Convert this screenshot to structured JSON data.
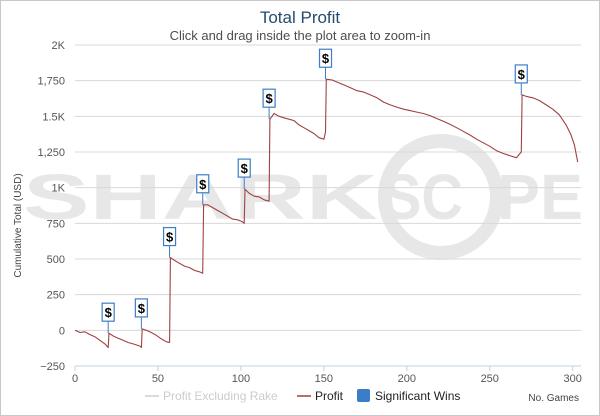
{
  "chart_data": {
    "type": "line",
    "title": "Total Profit",
    "subtitle": "Click and drag inside the plot area to zoom-in",
    "xlabel": "No. Games",
    "ylabel": "Cumulative Total (USD)",
    "xlim": [
      0,
      305
    ],
    "ylim": [
      -250,
      2000
    ],
    "x_ticks": [
      0,
      50,
      100,
      150,
      200,
      250,
      300
    ],
    "y_ticks": [
      -250,
      0,
      250,
      500,
      750,
      1000,
      1250,
      1500,
      1750,
      2000
    ],
    "y_tick_labels": [
      "−250",
      "0",
      "250",
      "500",
      "750",
      "1K",
      "1,250",
      "1.5K",
      "1,750",
      "2K"
    ],
    "grid": "horizontal",
    "legend_position": "bottom",
    "watermark": "SHARKSCOPE",
    "series": [
      {
        "name": "Profit Excluding Rake",
        "color": "#cccccc",
        "visible": false,
        "points": []
      },
      {
        "name": "Profit",
        "color": "#a04040",
        "points": [
          [
            0,
            0
          ],
          [
            3,
            -15
          ],
          [
            6,
            -10
          ],
          [
            9,
            -30
          ],
          [
            12,
            -45
          ],
          [
            15,
            -70
          ],
          [
            18,
            -95
          ],
          [
            20,
            -120
          ],
          [
            20.5,
            -20
          ],
          [
            23,
            -40
          ],
          [
            26,
            -55
          ],
          [
            29,
            -70
          ],
          [
            32,
            -85
          ],
          [
            35,
            -95
          ],
          [
            39,
            -110
          ],
          [
            40,
            -120
          ],
          [
            40.5,
            10
          ],
          [
            43,
            0
          ],
          [
            46,
            -15
          ],
          [
            49,
            -35
          ],
          [
            52,
            -60
          ],
          [
            55,
            -80
          ],
          [
            57,
            -85
          ],
          [
            57.5,
            510
          ],
          [
            60,
            490
          ],
          [
            63,
            470
          ],
          [
            66,
            450
          ],
          [
            69,
            440
          ],
          [
            72,
            420
          ],
          [
            75,
            410
          ],
          [
            77,
            400
          ],
          [
            77.5,
            880
          ],
          [
            80,
            880
          ],
          [
            83,
            860
          ],
          [
            86,
            840
          ],
          [
            89,
            820
          ],
          [
            92,
            800
          ],
          [
            95,
            780
          ],
          [
            98,
            775
          ],
          [
            101,
            760
          ],
          [
            102,
            750
          ],
          [
            102.5,
            990
          ],
          [
            105,
            960
          ],
          [
            108,
            940
          ],
          [
            111,
            935
          ],
          [
            114,
            915
          ],
          [
            117,
            905
          ],
          [
            117.5,
            1480
          ],
          [
            120,
            1520
          ],
          [
            123,
            1500
          ],
          [
            126,
            1490
          ],
          [
            129,
            1480
          ],
          [
            132,
            1470
          ],
          [
            135,
            1440
          ],
          [
            138,
            1420
          ],
          [
            141,
            1400
          ],
          [
            144,
            1380
          ],
          [
            147,
            1350
          ],
          [
            150,
            1340
          ],
          [
            151,
            1390
          ],
          [
            151.5,
            1760
          ],
          [
            155,
            1755
          ],
          [
            158,
            1740
          ],
          [
            162,
            1720
          ],
          [
            166,
            1700
          ],
          [
            170,
            1680
          ],
          [
            174,
            1670
          ],
          [
            178,
            1650
          ],
          [
            182,
            1630
          ],
          [
            186,
            1600
          ],
          [
            190,
            1580
          ],
          [
            194,
            1565
          ],
          [
            198,
            1550
          ],
          [
            202,
            1540
          ],
          [
            206,
            1530
          ],
          [
            210,
            1520
          ],
          [
            214,
            1505
          ],
          [
            218,
            1485
          ],
          [
            222,
            1465
          ],
          [
            226,
            1445
          ],
          [
            230,
            1420
          ],
          [
            234,
            1395
          ],
          [
            238,
            1370
          ],
          [
            242,
            1340
          ],
          [
            246,
            1315
          ],
          [
            250,
            1290
          ],
          [
            254,
            1260
          ],
          [
            258,
            1240
          ],
          [
            262,
            1225
          ],
          [
            266,
            1210
          ],
          [
            269,
            1250
          ],
          [
            269.5,
            1650
          ],
          [
            272,
            1640
          ],
          [
            276,
            1630
          ],
          [
            280,
            1610
          ],
          [
            284,
            1580
          ],
          [
            288,
            1550
          ],
          [
            292,
            1510
          ],
          [
            296,
            1440
          ],
          [
            299,
            1370
          ],
          [
            301,
            1300
          ],
          [
            303,
            1180
          ]
        ]
      }
    ],
    "significant_wins": {
      "name": "Significant Wins",
      "color": "#3c7dc9",
      "label": "$",
      "markers": [
        {
          "x": 20,
          "y": -120
        },
        {
          "x": 40,
          "y": -120
        },
        {
          "x": 57,
          "y": -85
        },
        {
          "x": 77,
          "y": 400
        },
        {
          "x": 102,
          "y": 750
        },
        {
          "x": 117,
          "y": 905
        },
        {
          "x": 151,
          "y": 1390
        },
        {
          "x": 269,
          "y": 1250
        }
      ]
    }
  }
}
